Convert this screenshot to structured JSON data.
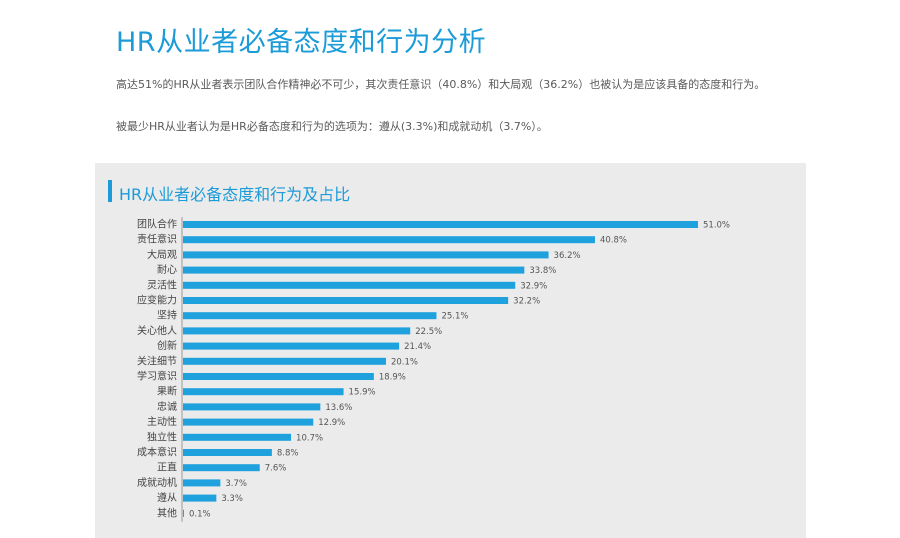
{
  "page": {
    "title": "HR从业者必备态度和行为分析",
    "desc1": "高达51%的HR从业者表示团队合作精神必不可少，其次责任意识（40.8%）和大局观（36.2%）也被认为是应该具备的态度和行为。",
    "desc2": "被最少HR从业者认为是HR必备态度和行为的选项为：遵从(3.3%)和成就动机（3.7%）。"
  },
  "chart_data": {
    "type": "bar",
    "orientation": "horizontal",
    "title": "HR从业者必备态度和行为及占比",
    "categories": [
      "团队合作",
      "责任意识",
      "大局观",
      "耐心",
      "灵活性",
      "应变能力",
      "坚持",
      "关心他人",
      "创新",
      "关注细节",
      "学习意识",
      "果断",
      "忠诚",
      "主动性",
      "独立性",
      "成本意识",
      "正直",
      "成就动机",
      "遵从",
      "其他"
    ],
    "values": [
      51.0,
      40.8,
      36.2,
      33.8,
      32.9,
      32.2,
      25.1,
      22.5,
      21.4,
      20.1,
      18.9,
      15.9,
      13.6,
      12.9,
      10.7,
      8.8,
      7.6,
      3.7,
      3.3,
      0.1
    ],
    "value_labels": [
      "51.0%",
      "40.8%",
      "36.2%",
      "33.8%",
      "32.9%",
      "32.2%",
      "25.1%",
      "22.5%",
      "21.4%",
      "20.1%",
      "18.9%",
      "15.9%",
      "13.6%",
      "12.9%",
      "10.7%",
      "8.8%",
      "7.6%",
      "3.7%",
      "3.3%",
      "0.1%"
    ],
    "bar_color": "#1ea1dd",
    "xlim": [
      0,
      51.0
    ],
    "grid": false,
    "legend": false
  },
  "colors": {
    "accent": "#1b9bd7",
    "panel": "#ebebeb"
  }
}
